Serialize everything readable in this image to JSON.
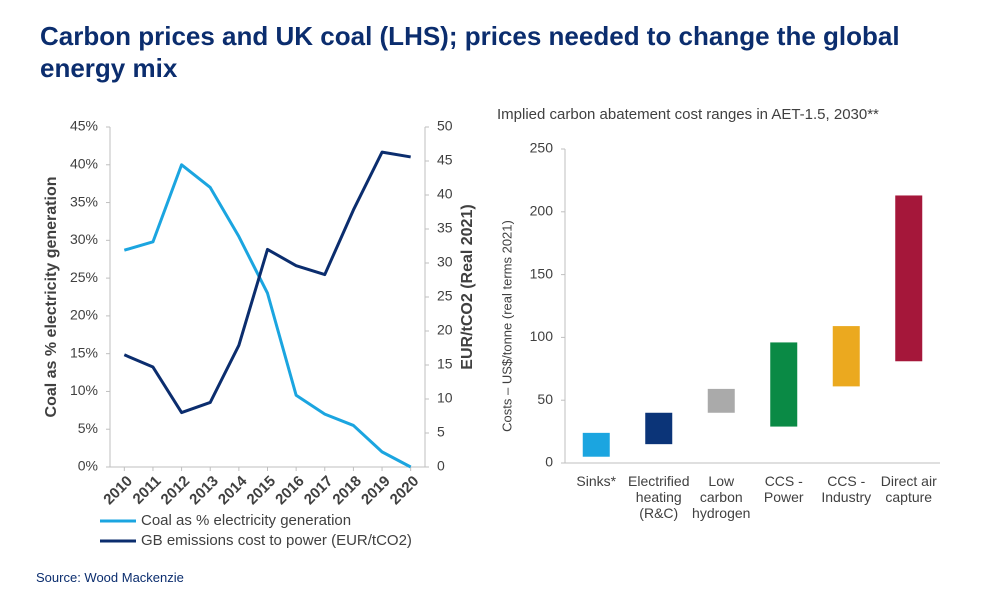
{
  "title": "Carbon prices and UK coal (LHS); prices needed to change the global energy mix",
  "source": "Source: Wood Mackenzie",
  "chart_data": [
    {
      "type": "line",
      "categories": [
        "2010",
        "2011",
        "2012",
        "2013",
        "2014",
        "2015",
        "2016",
        "2017",
        "2018",
        "2019",
        "2020"
      ],
      "ylabel": "Coal as % electricity generation",
      "y2label": "EUR/tCO2 (Real 2021)",
      "ylim": [
        0,
        45
      ],
      "yticks": [
        {
          "value": 0,
          "label": "0%"
        },
        {
          "value": 5,
          "label": "5%"
        },
        {
          "value": 10,
          "label": "10%"
        },
        {
          "value": 15,
          "label": "15%"
        },
        {
          "value": 20,
          "label": "20%"
        },
        {
          "value": 25,
          "label": "25%"
        },
        {
          "value": 30,
          "label": "30%"
        },
        {
          "value": 35,
          "label": "35%"
        },
        {
          "value": 40,
          "label": "40%"
        },
        {
          "value": 45,
          "label": "45%"
        }
      ],
      "y2lim": [
        0,
        50
      ],
      "y2ticks": [
        0,
        5,
        10,
        15,
        20,
        25,
        30,
        35,
        40,
        45,
        50
      ],
      "series": [
        {
          "name": "Coal as % electricity generation",
          "color": "#1ba5e0",
          "values": [
            28.7,
            29.8,
            40,
            37,
            30.5,
            23,
            9.5,
            7,
            5.5,
            2,
            0
          ]
        },
        {
          "name": "GB emissions cost to power (EUR/tCO2)",
          "color": "#0b2d6e",
          "axis": "y2",
          "values": [
            16.5,
            14.7,
            8,
            9.5,
            17.9,
            32,
            29.6,
            28.3,
            37.8,
            46.3,
            45.6
          ]
        }
      ]
    },
    {
      "type": "floating-bar",
      "title": "Implied carbon abatement cost ranges in AET-1.5, 2030**",
      "ylabel": "Costs – US$/tonne (real terms 2021)",
      "categories": [
        "Sinks*",
        "Electrified heating (R&C)",
        "Low carbon hydrogen",
        "CCS - Power",
        "CCS - Industry",
        "Direct air capture"
      ],
      "low": [
        5,
        15,
        40,
        29,
        61,
        81
      ],
      "high": [
        24,
        40,
        59,
        96,
        109,
        213
      ],
      "colors": [
        "#1ba5e0",
        "#0b3478",
        "#aaaaaa",
        "#0a8a45",
        "#eba91f",
        "#a5173a"
      ],
      "ylim": [
        0,
        250
      ],
      "yticks": [
        0,
        50,
        100,
        150,
        200,
        250
      ]
    }
  ]
}
